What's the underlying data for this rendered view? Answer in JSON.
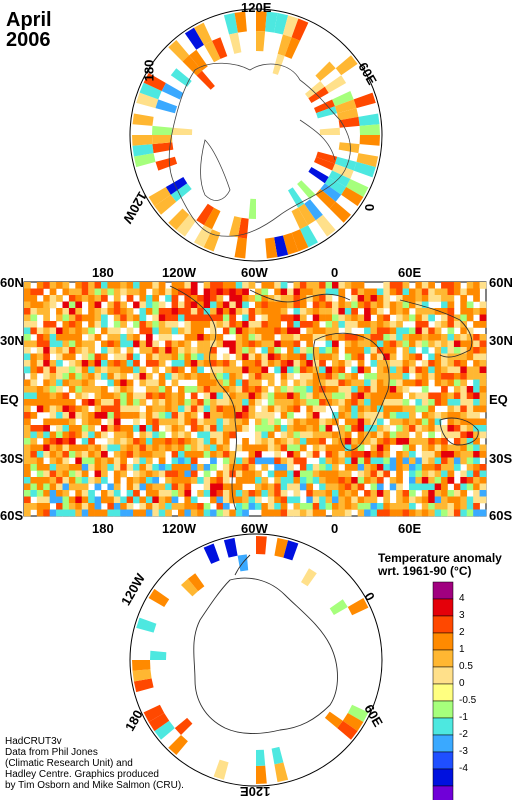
{
  "title": {
    "month": "April",
    "year": "2006"
  },
  "north_polar_labels": {
    "top": "120E",
    "left": "180",
    "right": "60E",
    "left_lower": "120W",
    "right_lower": "0"
  },
  "map": {
    "left_lat_labels": [
      "60N",
      "30N",
      "EQ",
      "30S",
      "60S"
    ],
    "right_lat_labels": [
      "60N",
      "30N",
      "EQ",
      "30S",
      "60S"
    ],
    "top_lon_labels": [
      "180",
      "120W",
      "60W",
      "0",
      "60E"
    ],
    "bottom_lon_labels": [
      "180",
      "120W",
      "60W",
      "0",
      "60E"
    ]
  },
  "south_polar_labels": {
    "top_left": "120W",
    "right_top": "0",
    "left_bottom": "180",
    "right_bottom": "60E",
    "bottom": "120E"
  },
  "legend": {
    "title_line1": "Temperature anomaly",
    "title_line2": "wrt. 1961-90  (°C)",
    "colors": [
      "#a0007f",
      "#e4000a",
      "#ff4800",
      "#ff8a00",
      "#ffb732",
      "#ffe08a",
      "#ffff80",
      "#a6ff7c",
      "#4de8e0",
      "#3aa9ff",
      "#1f4fff",
      "#0011df",
      "#7000d8"
    ],
    "labels": [
      "4",
      "3",
      "2",
      "1",
      "0.5",
      "0",
      "-0.5",
      "-1",
      "-2",
      "-3",
      "-4"
    ]
  },
  "credits": [
    "HadCRUT3v",
    "Data from Phil Jones",
    "(Climatic Research Unit) and",
    "Hadley Centre.  Graphics produced",
    "by Tim Osborn and Mike Salmon (CRU)."
  ]
}
